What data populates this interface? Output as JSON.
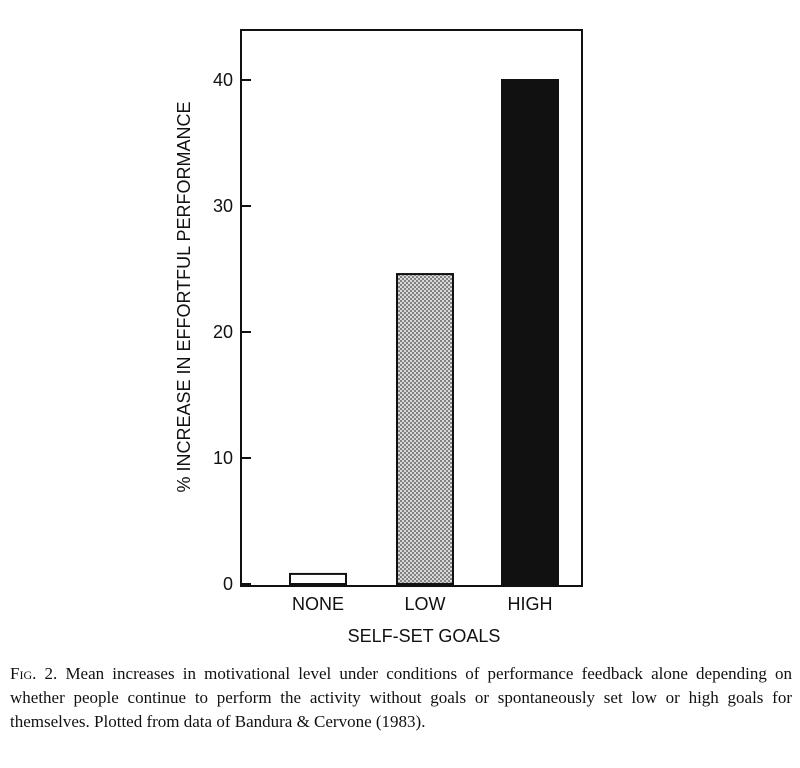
{
  "chart_data": {
    "type": "bar",
    "categories": [
      "NONE",
      "LOW",
      "HIGH"
    ],
    "values": [
      0.8,
      24.6,
      40
    ],
    "bar_fills": [
      "white",
      "stipple",
      "black"
    ],
    "ylim": [
      0,
      44
    ],
    "yticks": [
      0,
      10,
      20,
      30,
      40
    ],
    "xlabel": "SELF-SET GOALS",
    "ylabel": "% INCREASE IN EFFORTFUL PERFORMANCE",
    "grid": false,
    "legend": "none"
  },
  "caption": {
    "label": "Fig. 2.",
    "text": "Mean increases in motivational level under conditions of performance feedback alone depending on whether people continue to perform the activity without goals or spontaneously set low or high goals for themselves. Plotted from data of Bandura & Cervone (1983)."
  },
  "colors": {
    "ink": "#111111",
    "stipple_dot": "#444444",
    "stipple_bg": "#d8d8d8"
  }
}
